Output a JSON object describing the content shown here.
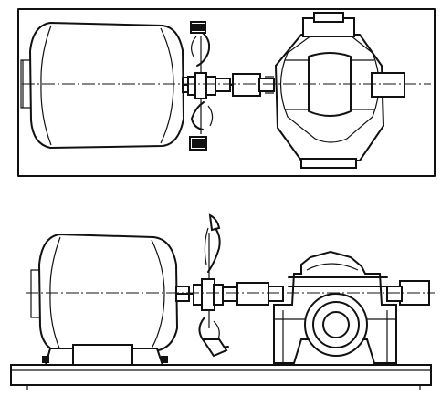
{
  "ghost_text": [],
  "figure": {
    "top_view": {
      "parts": [
        "electric-motor",
        "shaft-coupling",
        "dial-gauge-clamp",
        "split-case-pump"
      ]
    },
    "side_view": {
      "parts": [
        "electric-motor",
        "shaft-coupling",
        "dial-gauge-clamp",
        "split-case-pump",
        "base-plate"
      ]
    }
  }
}
